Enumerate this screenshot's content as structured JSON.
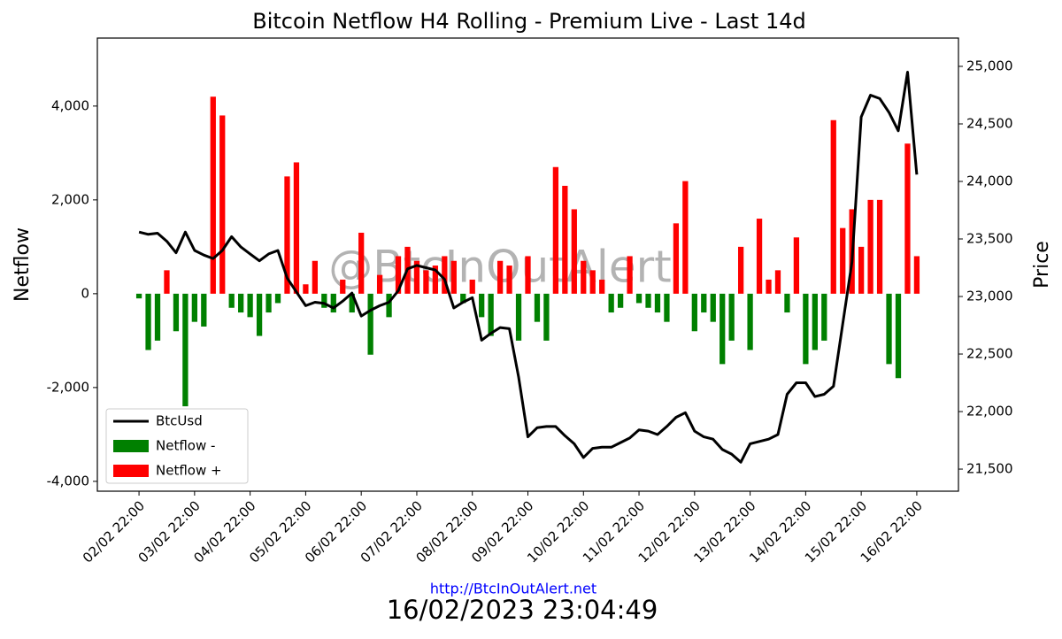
{
  "chart_data": {
    "type": "bar",
    "title": "Bitcoin Netflow H4 Rolling - Premium Live - Last 14d",
    "ylabel": "Netflow",
    "y2label": "Price",
    "watermark": "@BtcInOutAlert",
    "footer_link": "http://BtcInOutAlert.net",
    "timestamp": "16/02/2023 23:04:49",
    "legend": "lower left",
    "x": [
      "02/02 22:00",
      "03/02 02:00",
      "03/02 06:00",
      "03/02 10:00",
      "03/02 14:00",
      "03/02 18:00",
      "03/02 22:00",
      "04/02 02:00",
      "04/02 06:00",
      "04/02 10:00",
      "04/02 14:00",
      "04/02 18:00",
      "04/02 22:00",
      "05/02 02:00",
      "05/02 06:00",
      "05/02 10:00",
      "05/02 14:00",
      "05/02 18:00",
      "05/02 22:00",
      "06/02 02:00",
      "06/02 06:00",
      "06/02 10:00",
      "06/02 14:00",
      "06/02 18:00",
      "06/02 22:00",
      "07/02 02:00",
      "07/02 06:00",
      "07/02 10:00",
      "07/02 14:00",
      "07/02 18:00",
      "07/02 22:00",
      "08/02 02:00",
      "08/02 06:00",
      "08/02 10:00",
      "08/02 14:00",
      "08/02 18:00",
      "08/02 22:00",
      "09/02 02:00",
      "09/02 06:00",
      "09/02 10:00",
      "09/02 14:00",
      "09/02 18:00",
      "09/02 22:00",
      "10/02 02:00",
      "10/02 06:00",
      "10/02 10:00",
      "10/02 14:00",
      "10/02 18:00",
      "10/02 22:00",
      "11/02 02:00",
      "11/02 06:00",
      "11/02 10:00",
      "11/02 14:00",
      "11/02 18:00",
      "11/02 22:00",
      "12/02 02:00",
      "12/02 06:00",
      "12/02 10:00",
      "12/02 14:00",
      "12/02 18:00",
      "12/02 22:00",
      "13/02 02:00",
      "13/02 06:00",
      "13/02 10:00",
      "13/02 14:00",
      "13/02 18:00",
      "13/02 22:00",
      "14/02 02:00",
      "14/02 06:00",
      "14/02 10:00",
      "14/02 14:00",
      "14/02 18:00",
      "14/02 22:00",
      "15/02 02:00",
      "15/02 06:00",
      "15/02 10:00",
      "15/02 14:00",
      "15/02 18:00",
      "15/02 22:00",
      "16/02 02:00",
      "16/02 06:00",
      "16/02 10:00",
      "16/02 14:00",
      "16/02 18:00",
      "16/02 22:00"
    ],
    "xlim": [
      "02/02 04:00",
      "17/02 16:00"
    ],
    "xticks": [
      "02/02 22:00",
      "03/02 22:00",
      "04/02 22:00",
      "05/02 22:00",
      "06/02 22:00",
      "07/02 22:00",
      "08/02 22:00",
      "09/02 22:00",
      "10/02 22:00",
      "11/02 22:00",
      "12/02 22:00",
      "13/02 22:00",
      "14/02 22:00",
      "15/02 22:00",
      "16/02 22:00"
    ],
    "ylim": [
      -4210,
      5450
    ],
    "yticks": [
      {
        "value": -4000,
        "label": "-4,000"
      },
      {
        "value": -2000,
        "label": "-2,000"
      },
      0,
      {
        "value": 2000,
        "label": "2,000"
      },
      {
        "value": 4000,
        "label": "4,000"
      }
    ],
    "y2lim": [
      21308,
      25246
    ],
    "y2ticks": [
      {
        "value": 21500,
        "label": "21,500"
      },
      {
        "value": 22000,
        "label": "22,000"
      },
      {
        "value": 22500,
        "label": "22,500"
      },
      {
        "value": 23000,
        "label": "23,000"
      },
      {
        "value": 23500,
        "label": "23,500"
      },
      {
        "value": 24000,
        "label": "24,000"
      },
      {
        "value": 24500,
        "label": "24,500"
      },
      {
        "value": 25000,
        "label": "25,000"
      }
    ],
    "series": [
      {
        "name": "BtcUsd",
        "type": "line",
        "axis": "y2",
        "color": "#000000",
        "values": [
          23560,
          23540,
          23550,
          23480,
          23380,
          23560,
          23400,
          23360,
          23330,
          23400,
          23520,
          23430,
          23370,
          23310,
          23370,
          23400,
          23160,
          23040,
          22920,
          22950,
          22940,
          22900,
          22960,
          23030,
          22830,
          22880,
          22920,
          22950,
          23050,
          23240,
          23270,
          23250,
          23230,
          23150,
          22900,
          22950,
          22990,
          22620,
          22680,
          22730,
          22720,
          22300,
          21780,
          21860,
          21870,
          21870,
          21790,
          21720,
          21600,
          21680,
          21690,
          21690,
          21730,
          21770,
          21840,
          21830,
          21800,
          21870,
          21950,
          21990,
          21830,
          21780,
          21760,
          21670,
          21630,
          21560,
          21720,
          21740,
          21760,
          21800,
          22150,
          22250,
          22250,
          22130,
          22150,
          22220,
          22760,
          23300,
          24560,
          24750,
          24720,
          24600,
          24440,
          24950,
          24060
        ]
      },
      {
        "name": "Netflow -",
        "type": "bar",
        "color": "#008000",
        "values": [
          -100,
          -1200,
          -1000,
          null,
          -800,
          -2400,
          -600,
          -700,
          null,
          null,
          -300,
          -400,
          -500,
          -900,
          -400,
          -200,
          null,
          null,
          null,
          null,
          -300,
          -400,
          null,
          -400,
          null,
          -1300,
          null,
          -500,
          null,
          null,
          null,
          null,
          null,
          null,
          null,
          -200,
          null,
          -500,
          -900,
          null,
          null,
          -1000,
          null,
          -600,
          -1000,
          null,
          null,
          null,
          null,
          null,
          null,
          -400,
          -300,
          null,
          -200,
          -300,
          -400,
          -600,
          null,
          null,
          -800,
          -400,
          -600,
          -1500,
          -1000,
          null,
          -1200,
          null,
          null,
          null,
          -400,
          null,
          -1500,
          -1200,
          -1000,
          null,
          null,
          null,
          null,
          null,
          null,
          -1500,
          -1800,
          null,
          null
        ]
      },
      {
        "name": "Netflow +",
        "type": "bar",
        "color": "#ff0000",
        "values": [
          null,
          null,
          null,
          500,
          null,
          null,
          null,
          null,
          4200,
          3800,
          null,
          null,
          null,
          null,
          null,
          null,
          2500,
          2800,
          200,
          700,
          null,
          null,
          300,
          null,
          1300,
          null,
          400,
          null,
          800,
          1000,
          700,
          500,
          600,
          800,
          700,
          null,
          300,
          null,
          null,
          700,
          600,
          null,
          800,
          null,
          null,
          2700,
          2300,
          1800,
          700,
          500,
          300,
          null,
          null,
          800,
          null,
          null,
          null,
          null,
          1500,
          2400,
          null,
          null,
          null,
          null,
          null,
          1000,
          null,
          1600,
          300,
          500,
          null,
          1200,
          null,
          null,
          null,
          3700,
          1400,
          1800,
          1000,
          2000,
          2000,
          null,
          null,
          3200,
          800
        ]
      }
    ]
  }
}
